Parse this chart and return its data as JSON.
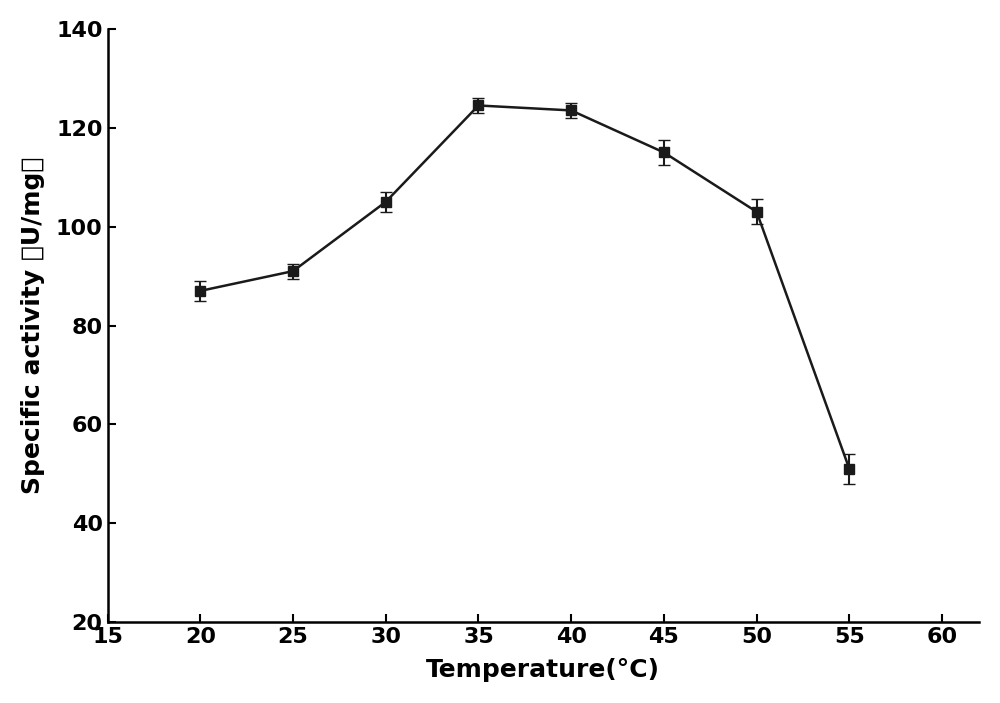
{
  "x": [
    20,
    25,
    30,
    35,
    40,
    45,
    50,
    55
  ],
  "y": [
    87,
    91,
    105,
    124.5,
    123.5,
    115,
    103,
    51
  ],
  "yerr": [
    2.0,
    1.5,
    2.0,
    1.5,
    1.5,
    2.5,
    2.5,
    3.0
  ],
  "xlabel": "Temperature(°C)",
  "ylabel": "Specific activity （U/mg）",
  "xlim": [
    15,
    62
  ],
  "ylim": [
    20,
    140
  ],
  "xticks": [
    15,
    20,
    25,
    30,
    35,
    40,
    45,
    50,
    55,
    60
  ],
  "yticks": [
    20,
    40,
    60,
    80,
    100,
    120,
    140
  ],
  "line_color": "#1a1a1a",
  "marker": "s",
  "marker_size": 7,
  "marker_color": "#1a1a1a",
  "capsize": 4,
  "linewidth": 1.8,
  "background_color": "#ffffff",
  "xlabel_fontsize": 18,
  "ylabel_fontsize": 18,
  "tick_fontsize": 16,
  "font_weight": "bold"
}
